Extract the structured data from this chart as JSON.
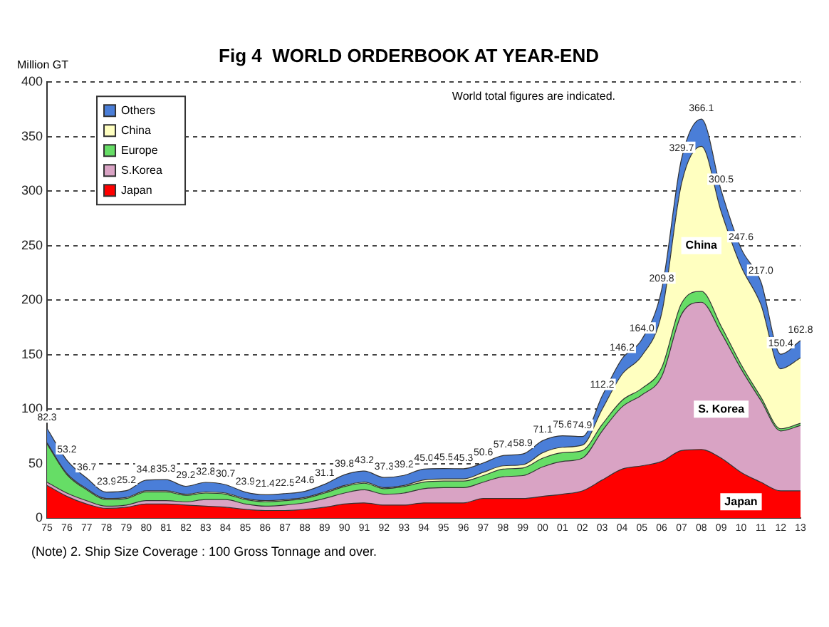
{
  "chart_data": {
    "type": "area",
    "stacked": true,
    "title": "Fig 4  WORLD ORDERBOOK AT YEAR-END",
    "ylabel": "Million GT",
    "categories": [
      "75",
      "76",
      "77",
      "78",
      "79",
      "80",
      "81",
      "82",
      "83",
      "84",
      "85",
      "86",
      "87",
      "88",
      "89",
      "90",
      "91",
      "92",
      "93",
      "94",
      "95",
      "96",
      "97",
      "98",
      "99",
      "00",
      "01",
      "02",
      "03",
      "04",
      "05",
      "06",
      "07",
      "08",
      "09",
      "10",
      "11",
      "12",
      "13"
    ],
    "series": [
      {
        "name": "Japan",
        "color": "#ff0000",
        "values": [
          30,
          20,
          13,
          9,
          10,
          13,
          13,
          12,
          11,
          10,
          8,
          7,
          7,
          8,
          10,
          13,
          14,
          12,
          12,
          14,
          14,
          14,
          18,
          18,
          18,
          20,
          22,
          25,
          35,
          45,
          48,
          52,
          62,
          63,
          55,
          42,
          33,
          25,
          25
        ]
      },
      {
        "name": "S.Korea",
        "color": "#d9a3c4",
        "values": [
          3,
          3,
          3,
          2,
          2,
          3,
          3,
          3,
          6,
          7,
          5,
          4,
          5,
          6,
          8,
          10,
          12,
          10,
          11,
          13,
          14,
          14,
          15,
          20,
          21,
          27,
          30,
          30,
          45,
          57,
          65,
          78,
          125,
          135,
          115,
          95,
          75,
          55,
          60
        ]
      },
      {
        "name": "Europe",
        "color": "#66dd66",
        "values": [
          35,
          17,
          10,
          6,
          6,
          8,
          8,
          6,
          6,
          5,
          4,
          4,
          4,
          4,
          5,
          6,
          6,
          5,
          6,
          6,
          6,
          6,
          6,
          7,
          7,
          8,
          8,
          7,
          6,
          6,
          6,
          8,
          10,
          10,
          6,
          4,
          3,
          2,
          2
        ]
      },
      {
        "name": "China",
        "color": "#ffffc0",
        "values": [
          1,
          1,
          1,
          1,
          1,
          1,
          1,
          1,
          1,
          1,
          1,
          1,
          1,
          1,
          1,
          1,
          1,
          1,
          1,
          2,
          2,
          2,
          3,
          3,
          3,
          5,
          5,
          5,
          14,
          24,
          30,
          50,
          110,
          133,
          105,
          90,
          85,
          55,
          60
        ]
      },
      {
        "name": "Others",
        "color": "#4a7ed8",
        "values": [
          13.3,
          12.2,
          9.7,
          5.9,
          6.2,
          9.8,
          10.3,
          7.2,
          8.8,
          7.7,
          5.9,
          5.4,
          5.5,
          5.6,
          7.1,
          9.8,
          10.2,
          9.3,
          9.2,
          10.0,
          9.5,
          9.3,
          8.6,
          9.4,
          9.9,
          11.1,
          10.6,
          7.9,
          12.2,
          14.2,
          15.0,
          21.8,
          22.7,
          25.1,
          19.5,
          16.6,
          21.0,
          13.4,
          15.8
        ]
      }
    ],
    "totals": [
      "82.3",
      "53.2",
      "36.7",
      "23.9",
      "25.2",
      "34.8",
      "35.3",
      "29.2",
      "32.8",
      "30.7",
      "23.9",
      "21.4",
      "22.5",
      "24.6",
      "31.1",
      "39.8",
      "43.2",
      "37.3",
      "39.2",
      "45.0",
      "45.5",
      "45.3",
      "50.6",
      "57.4",
      "58.9",
      "71.1",
      "75.6",
      "74.9",
      "112.2",
      "146.2",
      "164.0",
      "209.8",
      "329.7",
      "366.1",
      "300.5",
      "247.6",
      "217.0",
      "150.4",
      "162.8"
    ],
    "ylim": [
      0,
      400
    ],
    "yticks": [
      0,
      50,
      100,
      150,
      200,
      250,
      300,
      350,
      400
    ],
    "grid": "y",
    "legend": "top left",
    "annotations": [
      "World total figures are indicated.",
      {
        "text": "China",
        "x": "08",
        "y": 250
      },
      {
        "text": "S. Korea",
        "x": "09",
        "y": 100
      },
      {
        "text": "Japan",
        "x": "10",
        "y": 15
      },
      "(Note) 2. Ship Size Coverage : 100 Gross Tonnage and over."
    ]
  }
}
